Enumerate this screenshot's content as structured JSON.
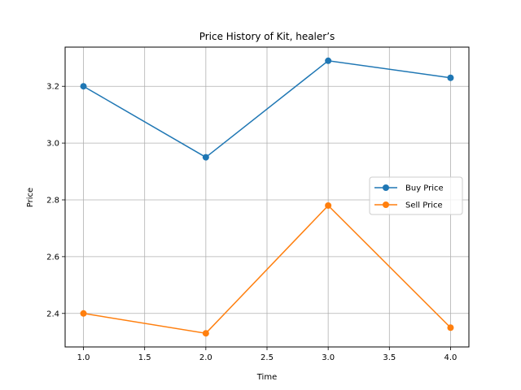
{
  "chart_data": {
    "type": "line",
    "title": "Price History of Kit, healer’s",
    "xlabel": "Time",
    "ylabel": "Price",
    "x": [
      1.0,
      2.0,
      3.0,
      4.0
    ],
    "series": [
      {
        "name": "Buy Price",
        "color": "#1f77b4",
        "values": [
          3.2,
          2.95,
          3.29,
          3.23
        ]
      },
      {
        "name": "Sell Price",
        "color": "#ff7f0e",
        "values": [
          2.4,
          2.33,
          2.78,
          2.35
        ]
      }
    ],
    "xlim": [
      0.85,
      4.15
    ],
    "ylim": [
      2.282,
      3.338
    ],
    "xticks": [
      "1.0",
      "1.5",
      "2.0",
      "2.5",
      "3.0",
      "3.5",
      "4.0"
    ],
    "yticks": [
      "2.4",
      "2.6",
      "2.8",
      "3.0",
      "3.2"
    ],
    "grid": true,
    "legend_position": "center-right"
  }
}
